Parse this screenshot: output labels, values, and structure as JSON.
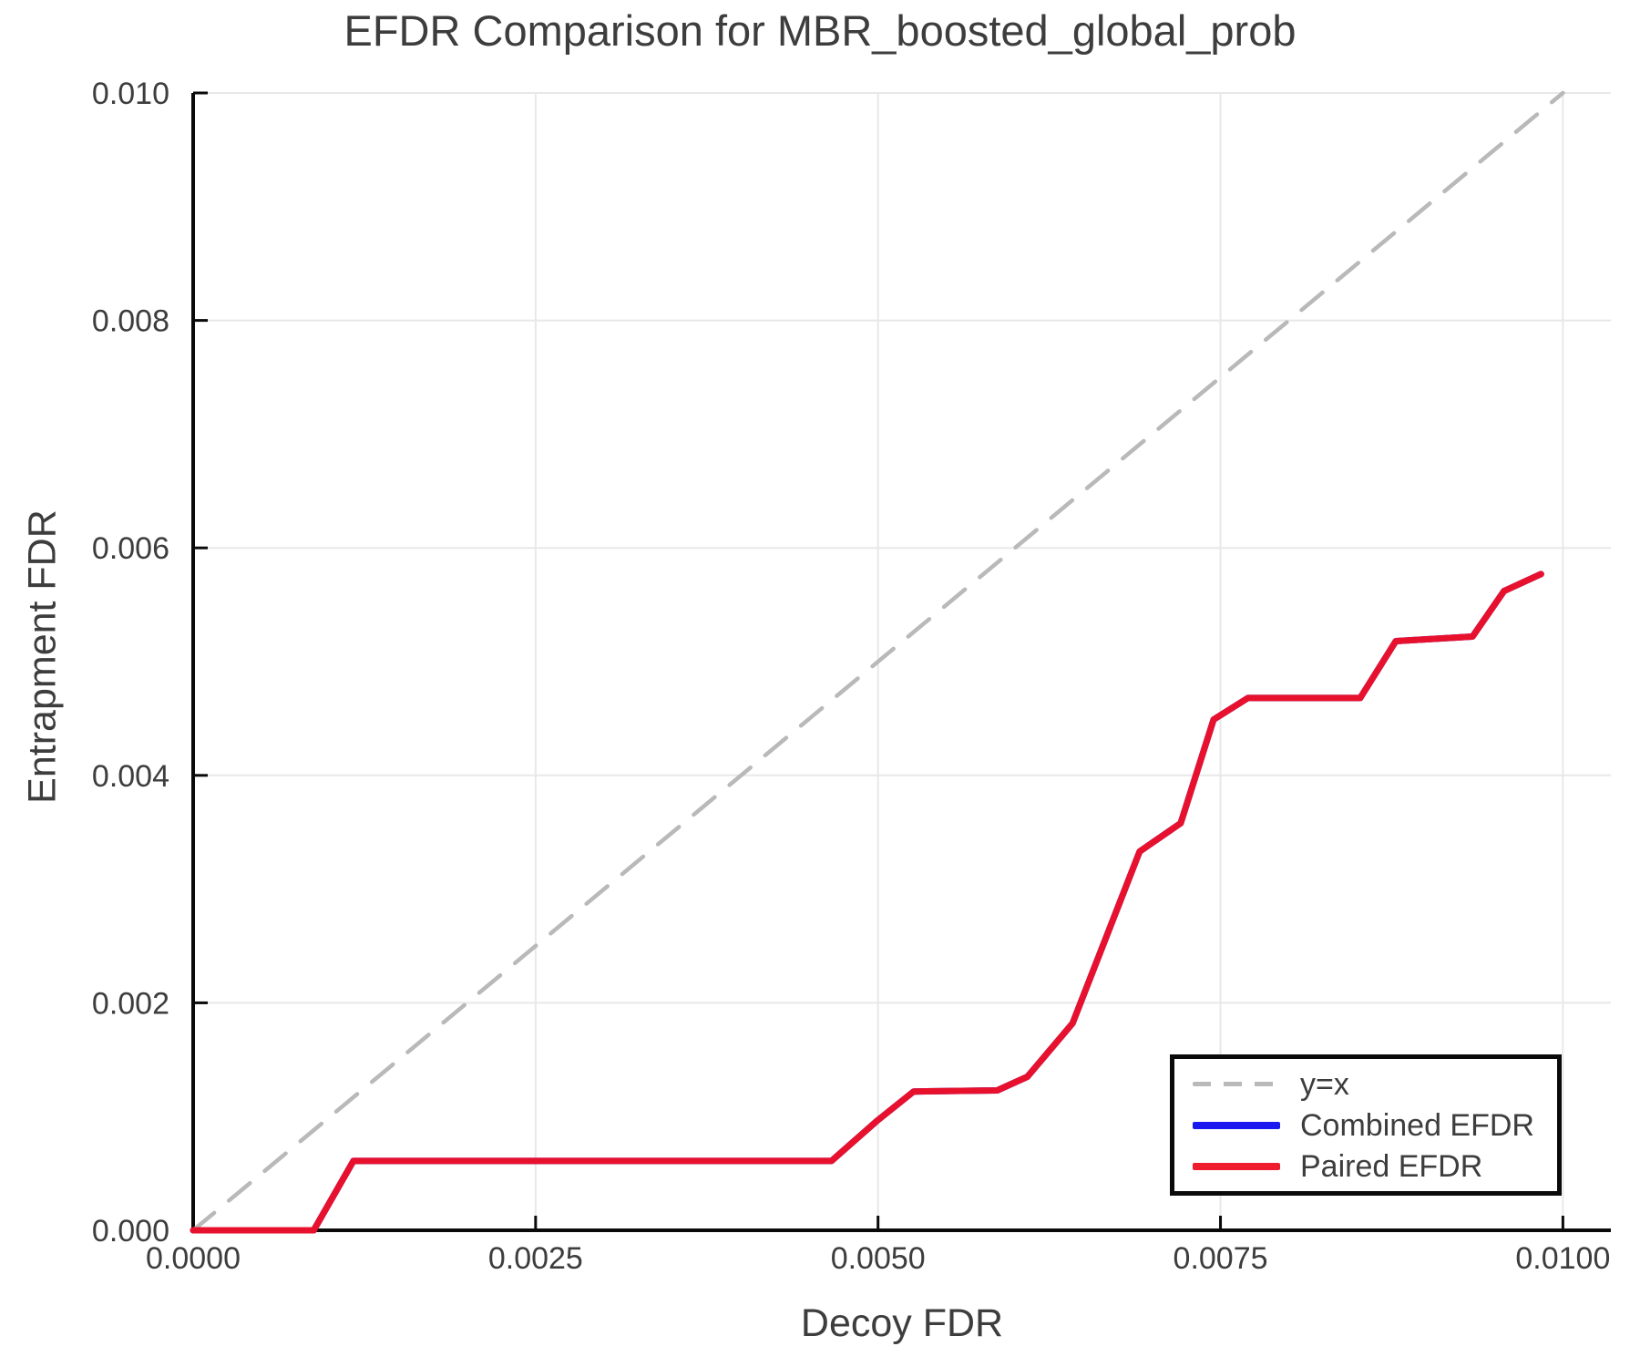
{
  "title": "EFDR Comparison for MBR_boosted_global_prob",
  "axes": {
    "x": {
      "label": "Decoy FDR",
      "tick_labels": [
        "0.0000",
        "0.0025",
        "0.0050",
        "0.0075",
        "0.0100"
      ],
      "tick_values": [
        0,
        0.0025,
        0.005,
        0.0075,
        0.01
      ]
    },
    "y": {
      "label": "Entrapment FDR",
      "tick_labels": [
        "0.000",
        "0.002",
        "0.004",
        "0.006",
        "0.008",
        "0.010"
      ],
      "tick_values": [
        0,
        0.002,
        0.004,
        0.006,
        0.008,
        0.01
      ]
    }
  },
  "legend": {
    "entries": [
      {
        "label": "y=x",
        "color": "#b9b9b9",
        "style": "dashed"
      },
      {
        "label": "Combined EFDR",
        "color": "#1a1af0",
        "style": "solid"
      },
      {
        "label": "Paired EFDR",
        "color": "#ee1c2d",
        "style": "solid"
      }
    ]
  },
  "colors": {
    "background": "#ffffff",
    "grid": "#e8e8e8",
    "spine": "#0a0a0a",
    "text": "#3d3d3d",
    "identity_line": "#b9b9b9",
    "combined_line": "#1a1af0",
    "paired_line": "#e8112d"
  },
  "chart_data": {
    "type": "line",
    "title": "EFDR Comparison for MBR_boosted_global_prob",
    "xlabel": "Decoy FDR",
    "ylabel": "Entrapment FDR",
    "xlim": [
      0,
      0.01035
    ],
    "ylim": [
      0,
      0.01
    ],
    "grid": true,
    "legend_position": "lower right",
    "series": [
      {
        "name": "y=x",
        "style": "dashed",
        "color": "#b9b9b9",
        "points": [
          [
            0,
            0
          ],
          [
            0.01,
            0.01
          ]
        ]
      },
      {
        "name": "Combined EFDR",
        "style": "solid",
        "color": "#1a1af0",
        "points": [
          [
            0.0,
            0.0
          ],
          [
            0.00088,
            0.0
          ],
          [
            0.00117,
            0.00061
          ],
          [
            0.00466,
            0.00061
          ],
          [
            0.00499,
            0.00096
          ],
          [
            0.00526,
            0.00122
          ],
          [
            0.00587,
            0.00123
          ],
          [
            0.00609,
            0.00135
          ],
          [
            0.00642,
            0.00182
          ],
          [
            0.00691,
            0.00333
          ],
          [
            0.00721,
            0.00358
          ],
          [
            0.00745,
            0.00449
          ],
          [
            0.0077,
            0.00468
          ],
          [
            0.00852,
            0.00468
          ],
          [
            0.00878,
            0.00518
          ],
          [
            0.00934,
            0.00522
          ],
          [
            0.00957,
            0.00562
          ],
          [
            0.00984,
            0.00577
          ]
        ]
      },
      {
        "name": "Paired EFDR",
        "style": "solid",
        "color": "#e8112d",
        "points": [
          [
            0.0,
            0.0
          ],
          [
            0.00088,
            0.0
          ],
          [
            0.00117,
            0.00061
          ],
          [
            0.00466,
            0.00061
          ],
          [
            0.00499,
            0.00096
          ],
          [
            0.00526,
            0.00122
          ],
          [
            0.00587,
            0.00123
          ],
          [
            0.00609,
            0.00135
          ],
          [
            0.00642,
            0.00182
          ],
          [
            0.00691,
            0.00333
          ],
          [
            0.00721,
            0.00358
          ],
          [
            0.00745,
            0.00449
          ],
          [
            0.0077,
            0.00468
          ],
          [
            0.00852,
            0.00468
          ],
          [
            0.00878,
            0.00518
          ],
          [
            0.00934,
            0.00522
          ],
          [
            0.00957,
            0.00562
          ],
          [
            0.00984,
            0.00577
          ]
        ]
      }
    ]
  }
}
